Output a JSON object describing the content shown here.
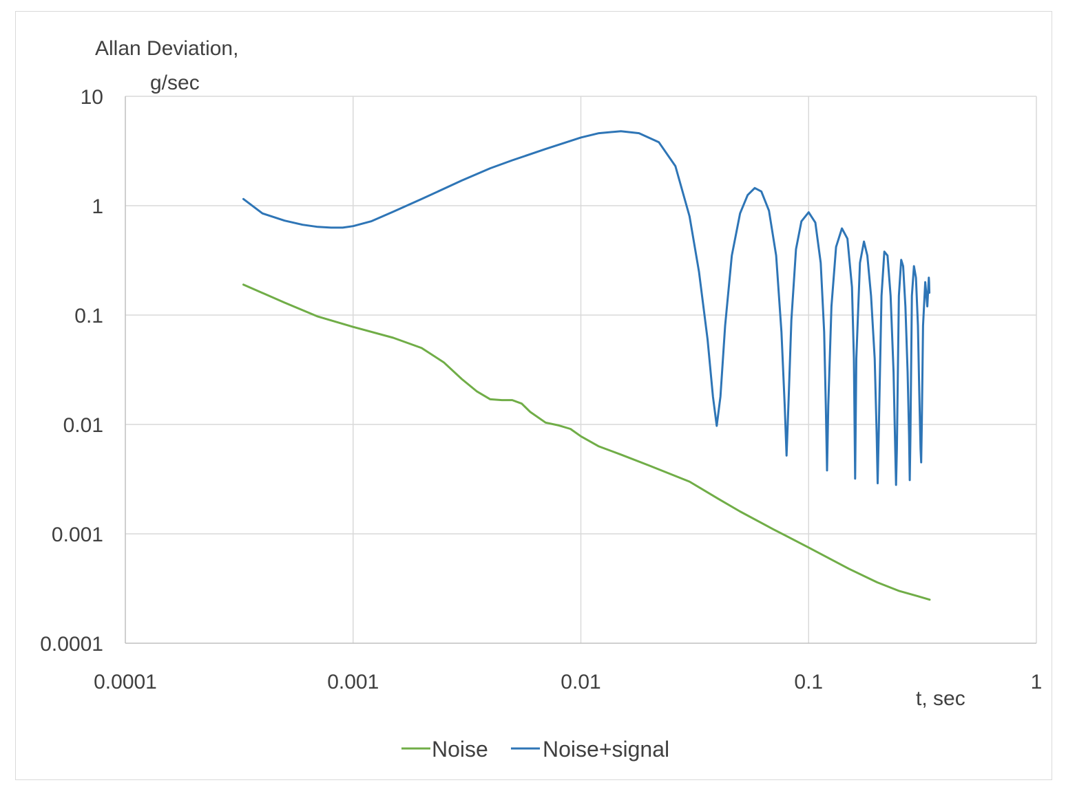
{
  "chart_data": {
    "type": "line",
    "ylabel_line1": "Allan Deviation,",
    "ylabel_line2": "g/sec",
    "xlabel": "t, sec",
    "xscale": "log",
    "yscale": "log",
    "xlim": [
      0.0001,
      1
    ],
    "ylim": [
      0.0001,
      10
    ],
    "grid": true,
    "legend_position": "bottom",
    "x_ticks": [
      "0.0001",
      "0.001",
      "0.01",
      "0.1",
      "1"
    ],
    "y_ticks": [
      "0.0001",
      "0.001",
      "0.01",
      "0.1",
      "1",
      "10"
    ],
    "series": [
      {
        "name": "Noise",
        "color": "#70ad47",
        "x": [
          0.00033,
          0.0005,
          0.0007,
          0.001,
          0.0015,
          0.002,
          0.0025,
          0.003,
          0.0035,
          0.004,
          0.0045,
          0.005,
          0.0055,
          0.006,
          0.007,
          0.008,
          0.009,
          0.01,
          0.012,
          0.015,
          0.02,
          0.03,
          0.04,
          0.05,
          0.07,
          0.1,
          0.15,
          0.2,
          0.25,
          0.3,
          0.34
        ],
        "y": [
          0.19,
          0.13,
          0.097,
          0.078,
          0.062,
          0.05,
          0.037,
          0.026,
          0.02,
          0.017,
          0.0167,
          0.0167,
          0.0155,
          0.013,
          0.0104,
          0.0098,
          0.0091,
          0.0078,
          0.0063,
          0.0053,
          0.0042,
          0.003,
          0.0021,
          0.0016,
          0.0011,
          0.00075,
          0.00048,
          0.00036,
          0.0003,
          0.00027,
          0.00025
        ]
      },
      {
        "name": "Noise+signal",
        "color": "#2e75b6",
        "x": [
          0.00033,
          0.0004,
          0.0005,
          0.0006,
          0.0007,
          0.0008,
          0.0009,
          0.001,
          0.0012,
          0.0015,
          0.002,
          0.003,
          0.004,
          0.005,
          0.007,
          0.01,
          0.012,
          0.015,
          0.018,
          0.022,
          0.026,
          0.03,
          0.033,
          0.036,
          0.038,
          0.0395,
          0.041,
          0.043,
          0.046,
          0.05,
          0.054,
          0.058,
          0.062,
          0.067,
          0.072,
          0.076,
          0.0785,
          0.08,
          0.0815,
          0.084,
          0.088,
          0.093,
          0.1,
          0.107,
          0.113,
          0.117,
          0.119,
          0.1205,
          0.122,
          0.126,
          0.132,
          0.14,
          0.148,
          0.155,
          0.158,
          0.16,
          0.162,
          0.168,
          0.175,
          0.181,
          0.188,
          0.195,
          0.199,
          0.201,
          0.203,
          0.209,
          0.215,
          0.222,
          0.229,
          0.236,
          0.24,
          0.242,
          0.244,
          0.249,
          0.255,
          0.26,
          0.266,
          0.272,
          0.276,
          0.278,
          0.28,
          0.284,
          0.29,
          0.296,
          0.302,
          0.306,
          0.31,
          0.312,
          0.314,
          0.318,
          0.325,
          0.332,
          0.337,
          0.338,
          0.339
        ],
        "y": [
          1.15,
          0.85,
          0.73,
          0.67,
          0.64,
          0.63,
          0.63,
          0.65,
          0.72,
          0.88,
          1.15,
          1.7,
          2.2,
          2.6,
          3.3,
          4.2,
          4.6,
          4.8,
          4.6,
          3.8,
          2.3,
          0.8,
          0.25,
          0.06,
          0.018,
          0.0097,
          0.018,
          0.08,
          0.35,
          0.85,
          1.25,
          1.45,
          1.35,
          0.9,
          0.35,
          0.07,
          0.015,
          0.0052,
          0.015,
          0.09,
          0.4,
          0.72,
          0.87,
          0.7,
          0.3,
          0.07,
          0.015,
          0.0038,
          0.015,
          0.12,
          0.42,
          0.62,
          0.5,
          0.18,
          0.04,
          0.0032,
          0.04,
          0.3,
          0.47,
          0.35,
          0.15,
          0.04,
          0.008,
          0.0029,
          0.008,
          0.15,
          0.38,
          0.35,
          0.15,
          0.03,
          0.006,
          0.0028,
          0.006,
          0.15,
          0.32,
          0.28,
          0.12,
          0.03,
          0.008,
          0.0031,
          0.008,
          0.15,
          0.28,
          0.22,
          0.08,
          0.02,
          0.006,
          0.0045,
          0.01,
          0.08,
          0.2,
          0.12,
          0.22,
          0.2,
          0.16
        ]
      }
    ]
  }
}
